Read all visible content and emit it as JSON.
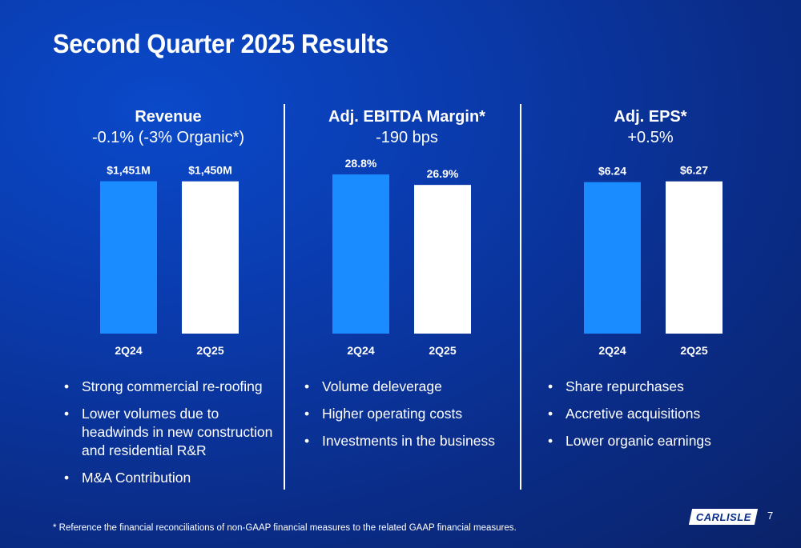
{
  "slide": {
    "title": "Second Quarter 2025 Results",
    "page_number": "7",
    "footnote": "* Reference the financial reconciliations of non-GAAP financial measures to the related GAAP financial measures.",
    "logo_text": "CARLISLE"
  },
  "colors": {
    "bar_2q24": "#1a8cff",
    "bar_2q25": "#ffffff",
    "background": "#0a3cb0"
  },
  "columns": [
    {
      "heading": "Revenue",
      "subheading": "-0.1% (-3% Organic*)",
      "bullets": [
        "Strong commercial re-roofing",
        "Lower volumes due to headwinds in new construction and residential R&R",
        "M&A Contribution"
      ]
    },
    {
      "heading": "Adj. EBITDA Margin*",
      "subheading": "-190 bps",
      "bullets": [
        "Volume deleverage",
        "Higher operating costs",
        "Investments in the business"
      ]
    },
    {
      "heading": "Adj. EPS*",
      "subheading": "+0.5%",
      "bullets": [
        "Share repurchases",
        "Accretive acquisitions",
        "Lower organic earnings"
      ]
    }
  ],
  "chart_data": [
    {
      "type": "bar",
      "title": "Revenue",
      "categories": [
        "2Q24",
        "2Q25"
      ],
      "values": [
        1451,
        1450
      ],
      "value_labels": [
        "$1,451M",
        "$1,450M"
      ],
      "unit": "$M",
      "ylim": [
        0,
        1600
      ],
      "grid": false
    },
    {
      "type": "bar",
      "title": "Adj. EBITDA Margin*",
      "categories": [
        "2Q24",
        "2Q25"
      ],
      "values": [
        28.8,
        26.9
      ],
      "value_labels": [
        "28.8%",
        "26.9%"
      ],
      "unit": "%",
      "ylim": [
        0,
        30.4
      ],
      "grid": false
    },
    {
      "type": "bar",
      "title": "Adj. EPS*",
      "categories": [
        "2Q24",
        "2Q25"
      ],
      "values": [
        6.24,
        6.27
      ],
      "value_labels": [
        "$6.24",
        "$6.27"
      ],
      "unit": "$",
      "ylim": [
        0,
        6.92
      ],
      "grid": false
    }
  ]
}
